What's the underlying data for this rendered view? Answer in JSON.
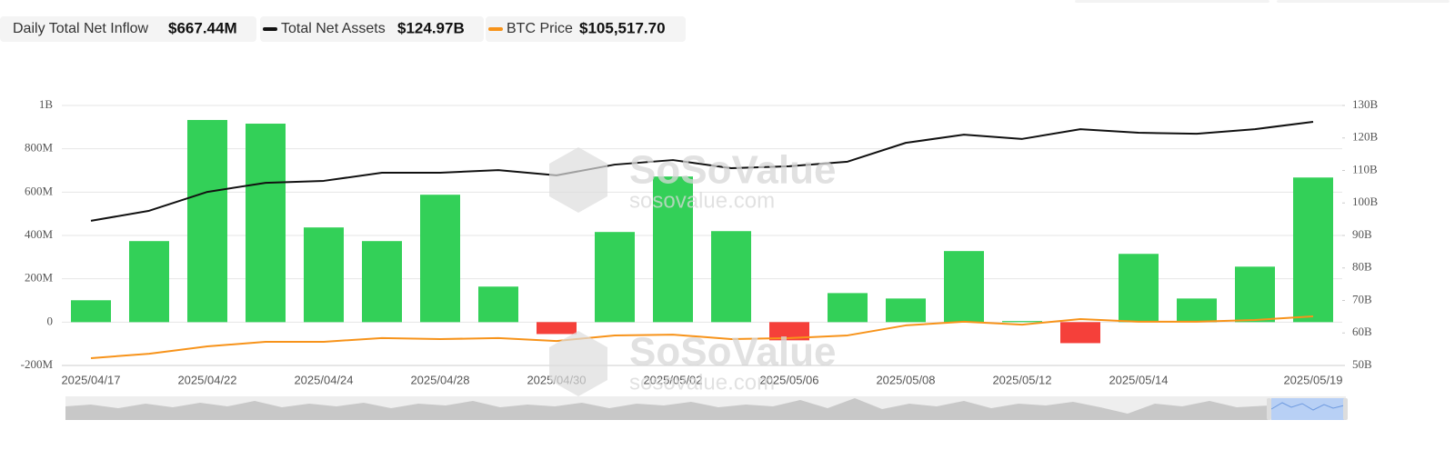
{
  "chart_data": {
    "type": "bar-line",
    "watermark": "SoSoValue",
    "watermark_url": "sosovalue.com",
    "categories": [
      "2025/04/17",
      null,
      "2025/04/22",
      null,
      "2025/04/24",
      null,
      "2025/04/28",
      null,
      "2025/04/30",
      null,
      "2025/05/02",
      null,
      "2025/05/06",
      null,
      "2025/05/08",
      null,
      "2025/05/12",
      null,
      "2025/05/14",
      null,
      null,
      "2025/05/19"
    ],
    "series": [
      {
        "name": "Daily Total Net Inflow",
        "latest_label": "$667.44M",
        "type": "bar",
        "axis": "y",
        "color": "#33d058",
        "negative_color": "#f5403a",
        "values": [
          101000000,
          374000000,
          933000000,
          916000000,
          437000000,
          374000000,
          588000000,
          164000000,
          -55000000,
          416000000,
          672000000,
          420000000,
          -84000000,
          134000000,
          109000000,
          328000000,
          5000000,
          -97000000,
          315000000,
          109000000,
          256000000,
          667440000
        ]
      },
      {
        "name": "Total Net Assets",
        "latest_label": "$124.97B",
        "type": "line",
        "axis": "y2",
        "color": "#111111",
        "values": [
          94500000000,
          97600000000,
          103400000000,
          106200000000,
          106800000000,
          109300000000,
          109300000000,
          110100000000,
          108500000000,
          111800000000,
          113200000000,
          110700000000,
          111300000000,
          112700000000,
          118500000000,
          121000000000,
          119700000000,
          122700000000,
          121600000000,
          121300000000,
          122700000000,
          124970000000
        ]
      },
      {
        "name": "BTC Price",
        "latest_label": "$105,517.70",
        "type": "line",
        "axis": "y3",
        "color": "#f7931a",
        "values": [
          83800,
          86100,
          89900,
          92300,
          92300,
          94200,
          93700,
          94200,
          92700,
          95600,
          96000,
          93700,
          94200,
          95600,
          100800,
          102700,
          101200,
          104100,
          102700,
          102700,
          103600,
          105517.7
        ]
      }
    ],
    "ylim": [
      -200000000,
      1000000000
    ],
    "yticks": [
      {
        "value": -200000000,
        "label": "-200M"
      },
      0,
      {
        "value": 200000000,
        "label": "200M"
      },
      {
        "value": 400000000,
        "label": "400M"
      },
      {
        "value": 600000000,
        "label": "600M"
      },
      {
        "value": 800000000,
        "label": "800M"
      },
      {
        "value": 1000000000,
        "label": "1B"
      }
    ],
    "y2lim": [
      50000000000,
      130000000000
    ],
    "y2ticks": [
      {
        "value": 50000000000,
        "label": "50B"
      },
      {
        "value": 60000000000,
        "label": "60B"
      },
      {
        "value": 70000000000,
        "label": "70B"
      },
      {
        "value": 80000000000,
        "label": "80B"
      },
      {
        "value": 90000000000,
        "label": "90B"
      },
      {
        "value": 100000000000,
        "label": "100B"
      },
      {
        "value": 110000000000,
        "label": "110B"
      },
      {
        "value": 120000000000,
        "label": "120B"
      },
      {
        "value": 130000000000,
        "label": "130B"
      }
    ],
    "y3lim": [
      80000,
      215000
    ],
    "grid": true
  }
}
